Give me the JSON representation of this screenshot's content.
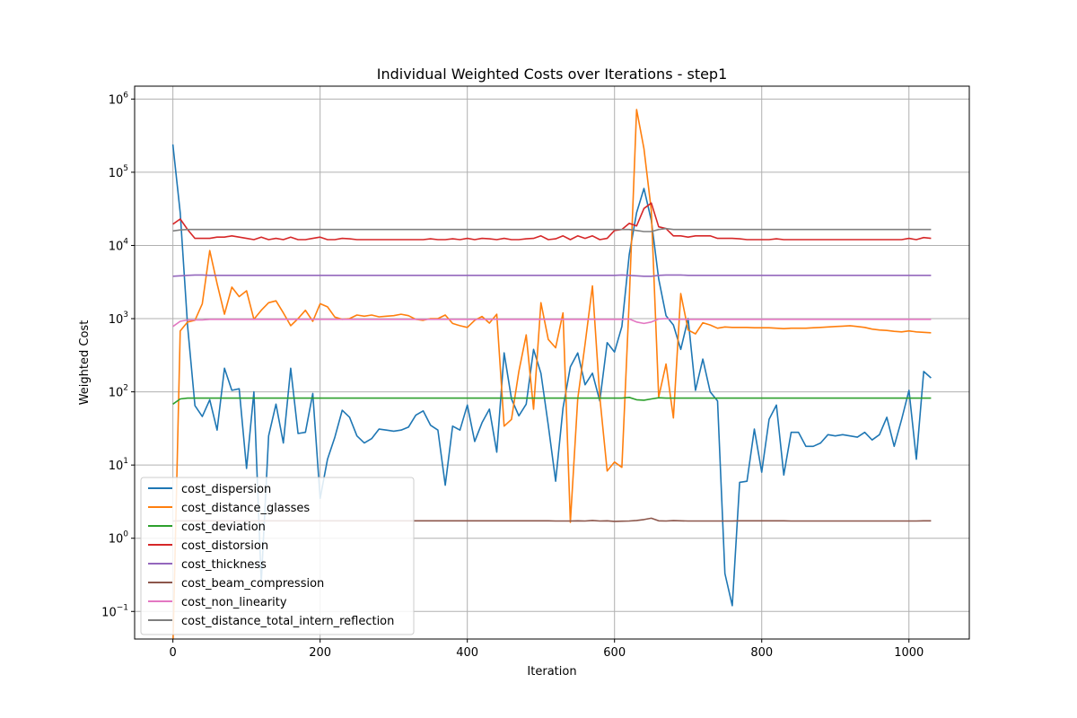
{
  "chart_data": {
    "type": "line",
    "title": "Individual Weighted Costs over Iterations - step1",
    "xlabel": "Iteration",
    "ylabel": "Weighted Cost",
    "xlim": [
      -52,
      1082
    ],
    "ylim": [
      0.042,
      1500000
    ],
    "yscale": "log",
    "grid": true,
    "legend_position": "lower-left",
    "x_ticks": [
      0,
      200,
      400,
      600,
      800,
      1000
    ],
    "y_ticks": [
      {
        "value": 0.1,
        "base": "10",
        "exp": "−1"
      },
      {
        "value": 1,
        "base": "10",
        "exp": "0"
      },
      {
        "value": 10,
        "base": "10",
        "exp": "1"
      },
      {
        "value": 100,
        "base": "10",
        "exp": "2"
      },
      {
        "value": 1000,
        "base": "10",
        "exp": "3"
      },
      {
        "value": 10000,
        "base": "10",
        "exp": "4"
      },
      {
        "value": 100000,
        "base": "10",
        "exp": "5"
      },
      {
        "value": 1000000,
        "base": "10",
        "exp": "6"
      }
    ],
    "x": [
      0,
      10,
      20,
      30,
      40,
      50,
      60,
      70,
      80,
      90,
      100,
      110,
      120,
      130,
      140,
      150,
      160,
      170,
      180,
      190,
      200,
      210,
      220,
      230,
      240,
      250,
      260,
      270,
      280,
      290,
      300,
      310,
      320,
      330,
      340,
      350,
      360,
      370,
      380,
      390,
      400,
      410,
      420,
      430,
      440,
      450,
      460,
      470,
      480,
      490,
      500,
      510,
      520,
      530,
      540,
      550,
      560,
      570,
      580,
      590,
      600,
      610,
      620,
      630,
      640,
      650,
      660,
      670,
      680,
      690,
      700,
      710,
      720,
      730,
      740,
      750,
      760,
      770,
      780,
      790,
      800,
      810,
      820,
      830,
      840,
      850,
      860,
      870,
      880,
      890,
      900,
      910,
      920,
      930,
      940,
      950,
      960,
      970,
      980,
      990,
      1000,
      1010,
      1020,
      1030
    ],
    "series": [
      {
        "name": "cost_dispersion",
        "color": "#1f77b4",
        "values": [
          240000,
          28000,
          800,
          65,
          46,
          78,
          30,
          210,
          105,
          110,
          9,
          100,
          0.25,
          25,
          68,
          20,
          210,
          27,
          28,
          95,
          3.5,
          12,
          24,
          56,
          45,
          25,
          20,
          23,
          31,
          30,
          29,
          30,
          33,
          48,
          55,
          35,
          30,
          5.3,
          34,
          30,
          66,
          21,
          38,
          58,
          15,
          340,
          80,
          47,
          68,
          380,
          180,
          35,
          6,
          60,
          220,
          340,
          125,
          180,
          75,
          470,
          350,
          780,
          7500,
          28000,
          60000,
          22000,
          3500,
          1100,
          820,
          380,
          1000,
          105,
          280,
          100,
          75,
          0.33,
          0.12,
          5.8,
          6,
          31,
          8,
          42,
          66,
          7.3,
          28,
          28,
          18,
          18,
          20,
          26,
          25,
          26,
          25,
          24,
          28,
          22,
          26,
          45,
          18,
          42,
          105,
          12,
          190,
          155
        ]
      },
      {
        "name": "cost_distance_glasses",
        "color": "#ff7f0e",
        "values": [
          0.03,
          680,
          900,
          950,
          1600,
          8500,
          3000,
          1150,
          2700,
          2000,
          2400,
          980,
          1300,
          1650,
          1750,
          1200,
          800,
          1000,
          1300,
          920,
          1600,
          1450,
          1050,
          980,
          1000,
          1120,
          1080,
          1120,
          1060,
          1080,
          1100,
          1150,
          1100,
          980,
          950,
          1000,
          1000,
          1120,
          860,
          800,
          760,
          950,
          1070,
          870,
          1150,
          34,
          42,
          190,
          600,
          58,
          1650,
          520,
          400,
          1200,
          1.65,
          80,
          450,
          2800,
          85,
          8.3,
          11,
          9.3,
          1800,
          720000,
          210000,
          30000,
          85,
          240,
          44,
          2200,
          700,
          620,
          880,
          820,
          740,
          770,
          760,
          760,
          760,
          750,
          750,
          750,
          740,
          730,
          740,
          740,
          740,
          750,
          760,
          770,
          780,
          790,
          800,
          780,
          760,
          720,
          700,
          690,
          670,
          660,
          680,
          660,
          650,
          640
        ]
      },
      {
        "name": "cost_deviation",
        "color": "#2ca02c",
        "values": [
          68,
          80,
          82,
          82,
          82,
          82,
          82,
          82,
          82,
          82,
          82,
          82,
          82,
          82,
          82,
          82,
          82,
          82,
          82,
          82,
          82,
          82,
          82,
          82,
          82,
          82,
          82,
          82,
          82,
          82,
          82,
          82,
          82,
          82,
          82,
          82,
          82,
          82,
          82,
          82,
          82,
          82,
          82,
          82,
          82,
          82,
          82,
          82,
          82,
          82,
          82,
          82,
          82,
          82,
          82,
          82,
          82,
          82,
          82,
          82,
          82,
          82,
          84,
          78,
          77,
          80,
          83,
          82,
          82,
          82,
          82,
          82,
          82,
          82,
          82,
          82,
          82,
          82,
          82,
          82,
          82,
          82,
          82,
          82,
          82,
          82,
          82,
          82,
          82,
          82,
          82,
          82,
          82,
          82,
          82,
          82,
          82,
          82,
          82,
          82,
          82,
          82,
          82,
          82
        ]
      },
      {
        "name": "cost_distorsion",
        "color": "#d62728",
        "values": [
          19500,
          23000,
          16500,
          12500,
          12500,
          12500,
          13000,
          13000,
          13500,
          13000,
          12500,
          12000,
          13000,
          12000,
          12500,
          12000,
          13000,
          12000,
          12000,
          12500,
          13000,
          12000,
          12000,
          12500,
          12300,
          12000,
          12000,
          12000,
          12000,
          12000,
          12000,
          12000,
          12000,
          12000,
          12000,
          12300,
          12000,
          12000,
          12300,
          12000,
          12500,
          12000,
          12500,
          12300,
          12000,
          12500,
          12000,
          12000,
          12300,
          12500,
          13500,
          12000,
          12300,
          13500,
          12000,
          13500,
          12500,
          13500,
          12000,
          12500,
          16000,
          16500,
          20000,
          18500,
          32000,
          38000,
          18000,
          17000,
          13500,
          13500,
          13000,
          13500,
          13500,
          13500,
          12500,
          12500,
          12500,
          12300,
          12000,
          12000,
          12000,
          12000,
          12300,
          12000,
          12000,
          12000,
          12000,
          12000,
          12000,
          12000,
          12000,
          12000,
          12000,
          12000,
          12000,
          12000,
          12000,
          12000,
          12000,
          12000,
          12500,
          12000,
          12800,
          12500
        ]
      },
      {
        "name": "cost_thickness",
        "color": "#9467bd",
        "values": [
          3800,
          3850,
          3900,
          3950,
          3950,
          3900,
          3900,
          3900,
          3900,
          3900,
          3900,
          3900,
          3900,
          3900,
          3900,
          3900,
          3900,
          3900,
          3900,
          3900,
          3900,
          3900,
          3900,
          3900,
          3900,
          3900,
          3900,
          3900,
          3900,
          3900,
          3900,
          3900,
          3900,
          3900,
          3900,
          3900,
          3900,
          3900,
          3900,
          3900,
          3900,
          3900,
          3900,
          3900,
          3900,
          3900,
          3900,
          3900,
          3900,
          3900,
          3900,
          3900,
          3900,
          3900,
          3900,
          3900,
          3900,
          3900,
          3900,
          3900,
          3900,
          3950,
          3900,
          3850,
          3800,
          3800,
          3900,
          3950,
          3950,
          3950,
          3900,
          3900,
          3900,
          3900,
          3900,
          3900,
          3900,
          3900,
          3900,
          3900,
          3900,
          3900,
          3900,
          3900,
          3900,
          3900,
          3900,
          3900,
          3900,
          3900,
          3900,
          3900,
          3900,
          3900,
          3900,
          3900,
          3900,
          3900,
          3900,
          3900,
          3900,
          3900,
          3900,
          3900
        ]
      },
      {
        "name": "cost_beam_compression",
        "color": "#8c564b",
        "values": [
          1.72,
          1.73,
          1.73,
          1.73,
          1.73,
          1.73,
          1.73,
          1.73,
          1.73,
          1.73,
          1.73,
          1.73,
          1.73,
          1.73,
          1.73,
          1.73,
          1.73,
          1.73,
          1.73,
          1.73,
          1.73,
          1.73,
          1.73,
          1.73,
          1.73,
          1.73,
          1.73,
          1.73,
          1.73,
          1.73,
          1.73,
          1.73,
          1.73,
          1.73,
          1.73,
          1.73,
          1.73,
          1.73,
          1.73,
          1.73,
          1.73,
          1.73,
          1.73,
          1.73,
          1.73,
          1.73,
          1.73,
          1.73,
          1.73,
          1.73,
          1.73,
          1.73,
          1.72,
          1.72,
          1.72,
          1.73,
          1.72,
          1.75,
          1.72,
          1.73,
          1.7,
          1.71,
          1.72,
          1.75,
          1.8,
          1.88,
          1.73,
          1.72,
          1.74,
          1.73,
          1.72,
          1.72,
          1.72,
          1.72,
          1.72,
          1.72,
          1.72,
          1.73,
          1.73,
          1.73,
          1.73,
          1.73,
          1.73,
          1.73,
          1.72,
          1.72,
          1.72,
          1.72,
          1.72,
          1.72,
          1.72,
          1.72,
          1.72,
          1.72,
          1.72,
          1.72,
          1.72,
          1.72,
          1.72,
          1.72,
          1.72,
          1.72,
          1.73,
          1.73
        ]
      },
      {
        "name": "cost_non_linearity",
        "color": "#e377c2",
        "values": [
          780,
          920,
          960,
          960,
          960,
          980,
          980,
          980,
          980,
          980,
          980,
          980,
          980,
          980,
          980,
          980,
          980,
          980,
          980,
          980,
          980,
          980,
          980,
          980,
          980,
          980,
          980,
          980,
          980,
          980,
          980,
          980,
          980,
          980,
          980,
          980,
          980,
          980,
          980,
          980,
          980,
          980,
          980,
          980,
          980,
          980,
          980,
          980,
          980,
          980,
          980,
          980,
          980,
          980,
          980,
          980,
          980,
          980,
          980,
          980,
          980,
          980,
          990,
          900,
          860,
          900,
          990,
          1000,
          980,
          980,
          980,
          980,
          980,
          980,
          980,
          980,
          980,
          980,
          980,
          980,
          980,
          980,
          980,
          980,
          980,
          980,
          980,
          980,
          980,
          980,
          980,
          980,
          980,
          980,
          980,
          980,
          980,
          980,
          980,
          980,
          980,
          980,
          980,
          980
        ]
      },
      {
        "name": "cost_distance_total_intern_reflection",
        "color": "#7f7f7f",
        "values": [
          15800,
          16300,
          16500,
          16500,
          16500,
          16500,
          16500,
          16500,
          16500,
          16500,
          16500,
          16500,
          16500,
          16500,
          16500,
          16500,
          16500,
          16500,
          16500,
          16500,
          16500,
          16500,
          16500,
          16500,
          16500,
          16500,
          16500,
          16500,
          16500,
          16500,
          16500,
          16500,
          16500,
          16500,
          16500,
          16500,
          16500,
          16500,
          16500,
          16500,
          16500,
          16500,
          16500,
          16500,
          16500,
          16500,
          16500,
          16500,
          16500,
          16500,
          16500,
          16500,
          16500,
          16500,
          16500,
          16500,
          16500,
          16500,
          16500,
          16500,
          16500,
          16500,
          16500,
          16000,
          15500,
          15500,
          16500,
          17000,
          16500,
          16500,
          16500,
          16500,
          16500,
          16500,
          16500,
          16500,
          16500,
          16500,
          16500,
          16500,
          16500,
          16500,
          16500,
          16500,
          16500,
          16500,
          16500,
          16500,
          16500,
          16500,
          16500,
          16500,
          16500,
          16500,
          16500,
          16500,
          16500,
          16500,
          16500,
          16500,
          16500,
          16500,
          16500,
          16500
        ]
      }
    ]
  }
}
